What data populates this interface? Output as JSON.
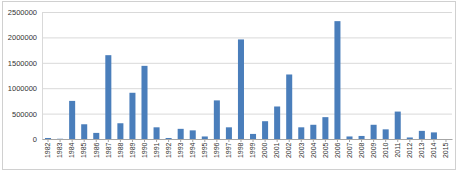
{
  "chart_data": {
    "type": "bar",
    "categories": [
      "1982",
      "1983",
      "1984",
      "1985",
      "1986",
      "1987",
      "1988",
      "1989",
      "1990",
      "1991",
      "1992",
      "1993",
      "1994",
      "1995",
      "1996",
      "1997",
      "1998",
      "1999",
      "2000",
      "2001",
      "2002",
      "2003",
      "2004",
      "2005",
      "2006",
      "2007",
      "2008",
      "2009",
      "2010",
      "2011",
      "2012",
      "2013",
      "2014",
      "2015"
    ],
    "values": [
      20000,
      5000,
      750000,
      290000,
      120000,
      1650000,
      310000,
      910000,
      1440000,
      230000,
      20000,
      200000,
      170000,
      50000,
      760000,
      230000,
      1960000,
      100000,
      350000,
      640000,
      1270000,
      230000,
      280000,
      430000,
      2320000,
      50000,
      60000,
      280000,
      190000,
      540000,
      30000,
      160000,
      130000,
      0
    ],
    "color": "#4a7ebb",
    "ylim": [
      0,
      2500000
    ],
    "yticks": [
      0,
      500000,
      1000000,
      1500000,
      2000000,
      2500000
    ],
    "grid": true
  }
}
